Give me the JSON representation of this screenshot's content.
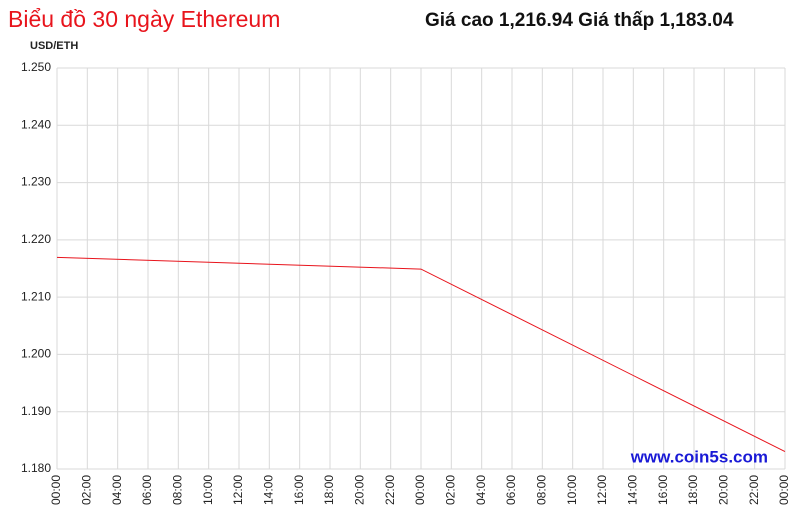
{
  "chart_data": {
    "type": "line",
    "title": "Biểu đồ 30 ngày Ethereum",
    "subtitle": "Giá cao 1,216.94 Giá thấp 1,183.04",
    "y_label": "USD/ETH",
    "watermark": "www.coin5s.com",
    "x": [
      0,
      24,
      48
    ],
    "series": [
      {
        "name": "ETH",
        "color": "#e8141c",
        "values": [
          1216.94,
          1214.9,
          1183.04
        ]
      }
    ],
    "xlim": [
      0,
      48
    ],
    "xticks": [
      {
        "value": 0,
        "label": "00:00"
      },
      {
        "value": 2,
        "label": "02:00"
      },
      {
        "value": 4,
        "label": "04:00"
      },
      {
        "value": 6,
        "label": "06:00"
      },
      {
        "value": 8,
        "label": "08:00"
      },
      {
        "value": 10,
        "label": "10:00"
      },
      {
        "value": 12,
        "label": "12:00"
      },
      {
        "value": 14,
        "label": "14:00"
      },
      {
        "value": 16,
        "label": "16:00"
      },
      {
        "value": 18,
        "label": "18:00"
      },
      {
        "value": 20,
        "label": "20:00"
      },
      {
        "value": 22,
        "label": "22:00"
      },
      {
        "value": 24,
        "label": "00:00"
      },
      {
        "value": 26,
        "label": "02:00"
      },
      {
        "value": 28,
        "label": "04:00"
      },
      {
        "value": 30,
        "label": "06:00"
      },
      {
        "value": 32,
        "label": "08:00"
      },
      {
        "value": 34,
        "label": "10:00"
      },
      {
        "value": 36,
        "label": "12:00"
      },
      {
        "value": 38,
        "label": "14:00"
      },
      {
        "value": 40,
        "label": "16:00"
      },
      {
        "value": 42,
        "label": "18:00"
      },
      {
        "value": 44,
        "label": "20:00"
      },
      {
        "value": 46,
        "label": "22:00"
      },
      {
        "value": 48,
        "label": "00:00"
      }
    ],
    "ylim": [
      1180,
      1250
    ],
    "yticks": [
      {
        "value": 1180,
        "label": "1.180"
      },
      {
        "value": 1190,
        "label": "1.190"
      },
      {
        "value": 1200,
        "label": "1.200"
      },
      {
        "value": 1210,
        "label": "1.210"
      },
      {
        "value": 1220,
        "label": "1.220"
      },
      {
        "value": 1230,
        "label": "1.230"
      },
      {
        "value": 1240,
        "label": "1.240"
      },
      {
        "value": 1250,
        "label": "1.250"
      }
    ],
    "grid": true
  }
}
